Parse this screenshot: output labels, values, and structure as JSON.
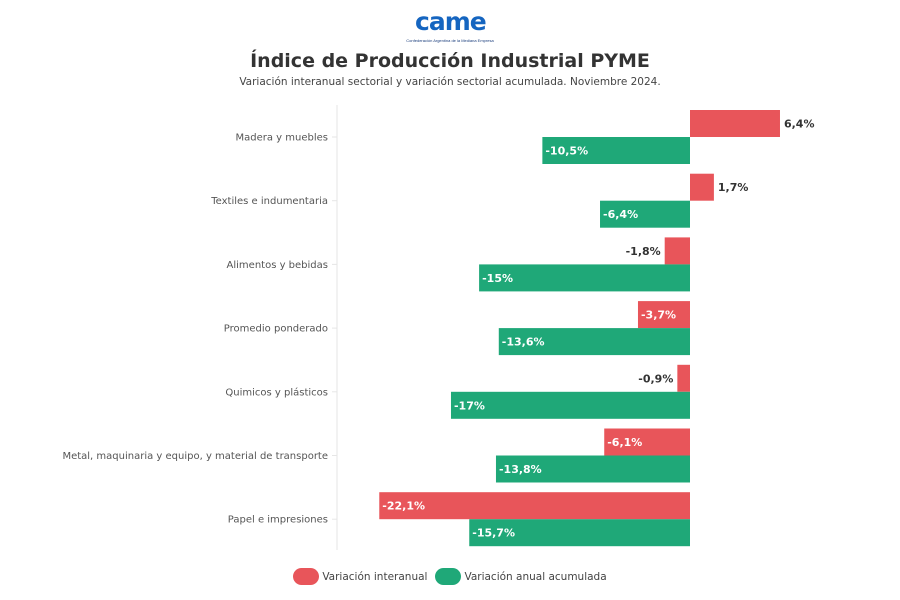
{
  "logo": {
    "word": "came",
    "tagline": "Confederación Argentina de la Mediana Empresa"
  },
  "chart_data": {
    "type": "bar",
    "orientation": "horizontal",
    "title": "Índice de Producción Industrial PYME",
    "subtitle": "Variación interanual sectorial y variación sectorial acumulada. Noviembre 2024.",
    "xlabel": "",
    "ylabel": "",
    "xlim": [
      -25,
      8
    ],
    "grid": false,
    "legend_position": "bottom",
    "categories": [
      "Madera y muebles",
      "Textiles e indumentaria",
      "Alimentos y bebidas",
      "Promedio ponderado",
      "Quimicos y plásticos",
      "Metal, maquinaria y equipo, y material de transporte",
      "Papel e impresiones"
    ],
    "series": [
      {
        "name": "Variación interanual",
        "color": "#e8555a",
        "values": [
          6.4,
          1.7,
          -1.8,
          -3.7,
          -0.9,
          -6.1,
          -22.1
        ],
        "labels": [
          "6,4%",
          "1,7%",
          "-1,8%",
          "-3,7%",
          "-0,9%",
          "-6,1%",
          "-22,1%"
        ]
      },
      {
        "name": "Variación anual acumulada",
        "color": "#1fa878",
        "values": [
          -10.5,
          -6.4,
          -15,
          -13.6,
          -17,
          -13.8,
          -15.7
        ],
        "labels": [
          "-10,5%",
          "-6,4%",
          "-15%",
          "-13,6%",
          "-17%",
          "-13,8%",
          "-15,7%"
        ]
      }
    ]
  },
  "legend": [
    {
      "label": "Variación interanual",
      "color": "#e8555a"
    },
    {
      "label": "Variación anual acumulada",
      "color": "#1fa878"
    }
  ]
}
